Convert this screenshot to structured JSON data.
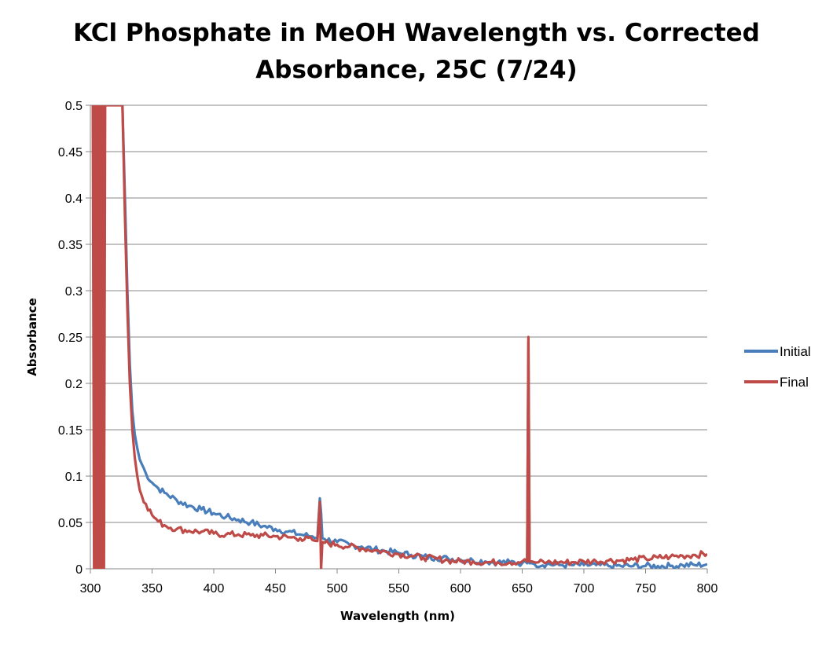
{
  "chart_data": {
    "type": "line",
    "title_lines": [
      "KCl Phosphate in MeOH Wavelength vs. Corrected",
      "Absorbance, 25C (7/24)"
    ],
    "xlabel": "Wavelength (nm)",
    "ylabel": "Absorbance",
    "xlim": [
      300,
      800
    ],
    "ylim": [
      0,
      0.5
    ],
    "x_ticks": [
      "300",
      "350",
      "400",
      "450",
      "500",
      "550",
      "600",
      "650",
      "700",
      "750",
      "800"
    ],
    "y_ticks": [
      "0",
      "0.05",
      "0.1",
      "0.15",
      "0.2",
      "0.25",
      "0.3",
      "0.35",
      "0.4",
      "0.45",
      "0.5"
    ],
    "grid": "horizontal",
    "legend_position": "right",
    "series": [
      {
        "name": "Initial",
        "color": "#4a7ebb",
        "x": [
          326,
          328,
          330,
          332,
          334,
          336,
          338,
          340,
          345,
          350,
          355,
          360,
          370,
          380,
          390,
          400,
          410,
          420,
          430,
          440,
          450,
          460,
          470,
          480,
          484,
          486,
          487,
          488,
          490,
          500,
          510,
          520,
          530,
          540,
          550,
          560,
          570,
          580,
          590,
          600,
          610,
          620,
          630,
          640,
          650,
          654,
          655,
          656,
          658,
          660,
          670,
          680,
          690,
          700,
          710,
          720,
          730,
          740,
          750,
          760,
          770,
          780,
          790,
          800
        ],
        "y": [
          0.5,
          0.4,
          0.3,
          0.22,
          0.17,
          0.145,
          0.13,
          0.118,
          0.103,
          0.093,
          0.087,
          0.082,
          0.074,
          0.068,
          0.064,
          0.06,
          0.056,
          0.053,
          0.05,
          0.046,
          0.043,
          0.04,
          0.037,
          0.035,
          0.034,
          0.076,
          0.06,
          0.033,
          0.032,
          0.029,
          0.026,
          0.024,
          0.021,
          0.019,
          0.017,
          0.015,
          0.013,
          0.012,
          0.011,
          0.01,
          0.009,
          0.008,
          0.007,
          0.007,
          0.006,
          0.006,
          0.245,
          0.006,
          0.006,
          0.005,
          0.005,
          0.004,
          0.004,
          0.004,
          0.004,
          0.003,
          0.003,
          0.003,
          0.003,
          0.003,
          0.003,
          0.004,
          0.004,
          0.005
        ]
      },
      {
        "name": "Final",
        "color": "#be4b48",
        "x": [
          302,
          303,
          304,
          305,
          306,
          307,
          308,
          309,
          310,
          311,
          312,
          326,
          328,
          330,
          332,
          334,
          336,
          338,
          340,
          345,
          350,
          355,
          360,
          370,
          380,
          390,
          400,
          410,
          420,
          430,
          440,
          450,
          460,
          470,
          480,
          484,
          486,
          487,
          488,
          490,
          500,
          510,
          520,
          530,
          540,
          550,
          560,
          570,
          580,
          590,
          600,
          610,
          620,
          630,
          640,
          650,
          654,
          655,
          656,
          658,
          660,
          670,
          680,
          690,
          700,
          710,
          720,
          730,
          740,
          750,
          760,
          770,
          780,
          790,
          800
        ],
        "y": [
          0.5,
          0,
          0.5,
          0,
          0.5,
          0,
          0.5,
          0,
          0.5,
          0,
          0.5,
          0.5,
          0.38,
          0.28,
          0.2,
          0.15,
          0.12,
          0.1,
          0.085,
          0.07,
          0.058,
          0.051,
          0.047,
          0.043,
          0.041,
          0.04,
          0.038,
          0.037,
          0.037,
          0.036,
          0.036,
          0.035,
          0.034,
          0.033,
          0.031,
          0.03,
          0.072,
          0.0,
          0.029,
          0.028,
          0.026,
          0.024,
          0.022,
          0.02,
          0.018,
          0.016,
          0.014,
          0.012,
          0.011,
          0.009,
          0.008,
          0.008,
          0.007,
          0.007,
          0.007,
          0.008,
          0.008,
          0.25,
          0.008,
          0.008,
          0.007,
          0.007,
          0.007,
          0.007,
          0.008,
          0.008,
          0.009,
          0.009,
          0.01,
          0.011,
          0.012,
          0.013,
          0.014,
          0.015,
          0.016
        ]
      }
    ]
  }
}
